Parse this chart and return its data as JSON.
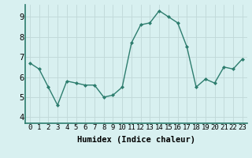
{
  "x": [
    0,
    1,
    2,
    3,
    4,
    5,
    6,
    7,
    8,
    9,
    10,
    11,
    12,
    13,
    14,
    15,
    16,
    17,
    18,
    19,
    20,
    21,
    22,
    23
  ],
  "y": [
    6.7,
    6.4,
    5.5,
    4.6,
    5.8,
    5.7,
    5.6,
    5.6,
    5.0,
    5.1,
    5.5,
    7.7,
    8.6,
    8.7,
    9.3,
    9.0,
    8.7,
    7.5,
    5.5,
    5.9,
    5.7,
    6.5,
    6.4,
    6.9
  ],
  "line_color": "#2d7d6e",
  "marker": "D",
  "marker_size": 2.0,
  "bg_color": "#d8f0f0",
  "grid_color": "#c0d8d8",
  "xlabel": "Humidex (Indice chaleur)",
  "ylabel_ticks": [
    4,
    5,
    6,
    7,
    8,
    9
  ],
  "xlim": [
    -0.5,
    23.5
  ],
  "ylim": [
    3.7,
    9.6
  ],
  "xtick_labels": [
    "0",
    "1",
    "2",
    "3",
    "4",
    "5",
    "6",
    "7",
    "8",
    "9",
    "10",
    "11",
    "12",
    "13",
    "14",
    "15",
    "16",
    "17",
    "18",
    "19",
    "20",
    "21",
    "22",
    "23"
  ],
  "font_size_label": 7.5,
  "font_size_tick": 6.5,
  "line_width": 1.0
}
